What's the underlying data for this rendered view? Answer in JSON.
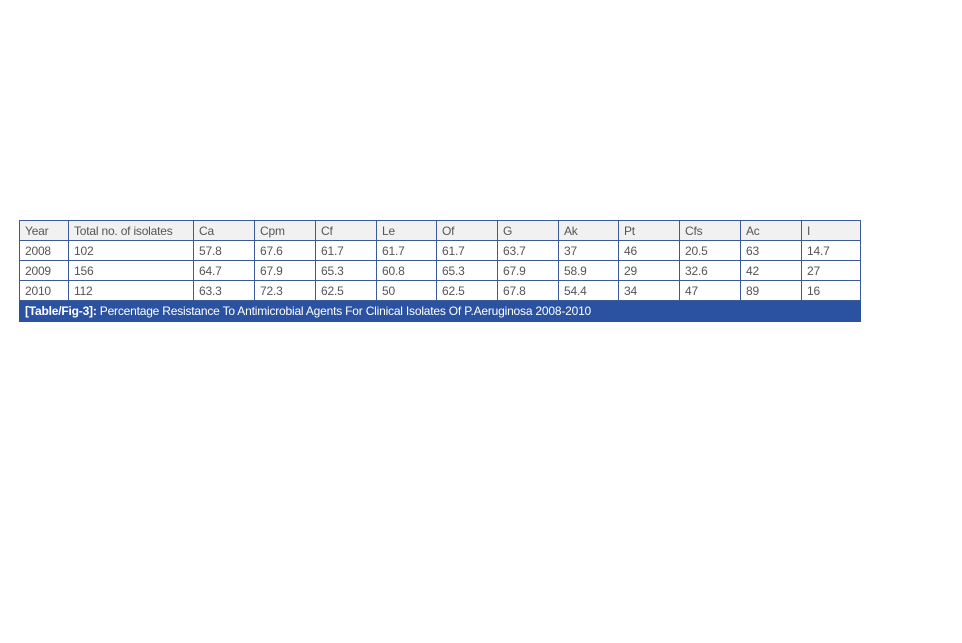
{
  "table": {
    "headers": [
      "Year",
      "Total no. of isolates",
      "Ca",
      "Cpm",
      "Cf",
      "Le",
      "Of",
      "G",
      "Ak",
      "Pt",
      "Cfs",
      "Ac",
      "I"
    ],
    "rows": [
      [
        "2008",
        "102",
        "57.8",
        "67.6",
        "61.7",
        "61.7",
        "61.7",
        "63.7",
        "37",
        "46",
        "20.5",
        "63",
        "14.7"
      ],
      [
        "2009",
        "156",
        "64.7",
        "67.9",
        "65.3",
        "60.8",
        "65.3",
        "67.9",
        "58.9",
        "29",
        "32.6",
        "42",
        "27"
      ],
      [
        "2010",
        "112",
        "63.3",
        "72.3",
        "62.5",
        "50",
        "62.5",
        "67.8",
        "54.4",
        "34",
        "47",
        "89",
        "16"
      ]
    ],
    "caption_label": "[Table/Fig-3]:",
    "caption_text": " Percentage Resistance To Antimicrobial Agents For Clinical Isolates Of P.Aeruginosa 2008-2010"
  },
  "colors": {
    "border": "#3a5a9a",
    "caption_bg": "#2b52a0",
    "header_bg": "#f1f1f1"
  }
}
